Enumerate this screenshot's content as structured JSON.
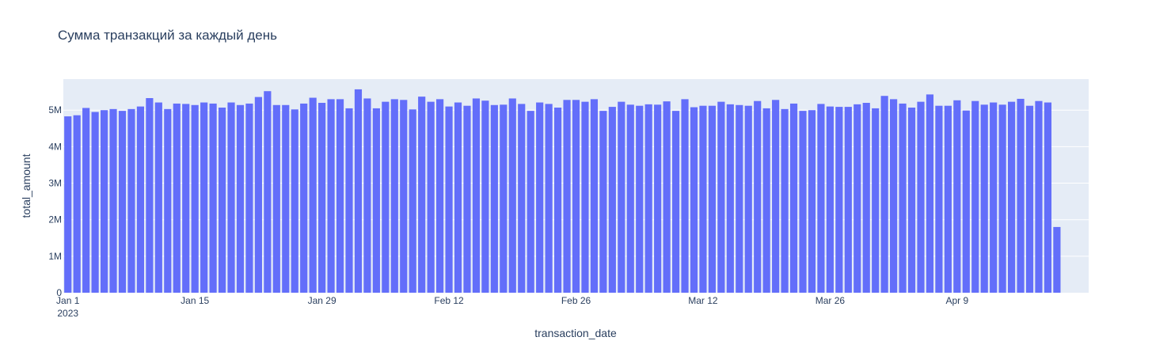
{
  "chart_data": {
    "type": "bar",
    "title": "Сумма транзакций за каждый день",
    "xlabel": "transaction_date",
    "ylabel": "total_amount",
    "x_start": "2023-01-01",
    "x_end": "2023-04-23",
    "xlim": [
      "2022-12-31T12:00",
      "2023-04-23T12:00"
    ],
    "ylim": [
      0,
      5.85
    ],
    "y_unit": "M",
    "y_ticks": [
      {
        "value": 0,
        "label": "0"
      },
      {
        "value": 1,
        "label": "1M"
      },
      {
        "value": 2,
        "label": "2M"
      },
      {
        "value": 3,
        "label": "3M"
      },
      {
        "value": 4,
        "label": "4M"
      },
      {
        "value": 5,
        "label": "5M"
      }
    ],
    "x_ticks": [
      {
        "date": "2023-01-01",
        "label": "Jan 1",
        "sublabel": "2023"
      },
      {
        "date": "2023-01-15",
        "label": "Jan 15"
      },
      {
        "date": "2023-01-29",
        "label": "Jan 29"
      },
      {
        "date": "2023-02-12",
        "label": "Feb 12"
      },
      {
        "date": "2023-02-26",
        "label": "Feb 26"
      },
      {
        "date": "2023-03-12",
        "label": "Mar 12"
      },
      {
        "date": "2023-03-26",
        "label": "Mar 26"
      },
      {
        "date": "2023-04-09",
        "label": "Apr 9"
      }
    ],
    "bar_color": "#636efa",
    "plot_bg": "#e5ecf6",
    "grid": true,
    "values": [
      4.83,
      4.86,
      5.06,
      4.95,
      5.0,
      5.03,
      4.98,
      5.03,
      5.1,
      5.33,
      5.21,
      5.03,
      5.18,
      5.17,
      5.14,
      5.21,
      5.18,
      5.07,
      5.21,
      5.14,
      5.18,
      5.36,
      5.52,
      5.14,
      5.14,
      5.02,
      5.18,
      5.34,
      5.2,
      5.3,
      5.3,
      5.05,
      5.57,
      5.32,
      5.05,
      5.23,
      5.3,
      5.28,
      5.02,
      5.37,
      5.23,
      5.3,
      5.1,
      5.21,
      5.12,
      5.32,
      5.26,
      5.14,
      5.15,
      5.32,
      5.17,
      4.98,
      5.21,
      5.17,
      5.07,
      5.28,
      5.28,
      5.23,
      5.3,
      4.98,
      5.09,
      5.23,
      5.15,
      5.12,
      5.16,
      5.15,
      5.24,
      4.98,
      5.3,
      5.08,
      5.12,
      5.12,
      5.23,
      5.16,
      5.14,
      5.12,
      5.25,
      5.05,
      5.28,
      5.03,
      5.18,
      4.98,
      5.0,
      5.17,
      5.1,
      5.09,
      5.09,
      5.16,
      5.2,
      5.05,
      5.39,
      5.3,
      5.18,
      5.07,
      5.23,
      5.43,
      5.12,
      5.12,
      5.27,
      4.99,
      5.25,
      5.15,
      5.21,
      5.15,
      5.23,
      5.31,
      5.12,
      5.25,
      5.21,
      1.8
    ]
  }
}
